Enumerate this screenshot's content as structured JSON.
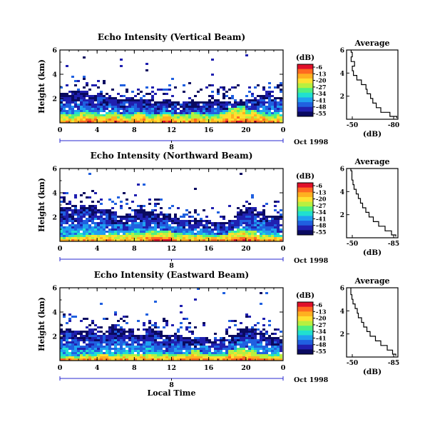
{
  "chart_data": [
    {
      "type": "heatmap",
      "title": "Echo Intensity (Vertical Beam)",
      "ylabel": "Height (km)",
      "x_ticks": [
        "0",
        "4",
        "8",
        "12",
        "16",
        "20",
        "0"
      ],
      "y_ticks": [
        "6",
        "4",
        "2"
      ],
      "xlim": [
        0,
        24
      ],
      "ylim": [
        0,
        6
      ],
      "date_ticks": [
        "8"
      ],
      "date_label": "Oct 1998",
      "colorbar": {
        "label": "(dB)",
        "ticks": [
          "-6",
          "-13",
          "-20",
          "-27",
          "-34",
          "-41",
          "-48",
          "-55"
        ],
        "colors": [
          "#e0102a",
          "#ff6a20",
          "#ffb020",
          "#ffe030",
          "#b8f040",
          "#50f080",
          "#20e0d0",
          "#20a0f0",
          "#2060e0",
          "#2020b0",
          "#0a0a60"
        ]
      },
      "top_heights": [
        2.5,
        2.6,
        2.7,
        2.3,
        2.4,
        2.2,
        2.0,
        2.1,
        2.0,
        1.9,
        1.8,
        1.9,
        1.8,
        1.8,
        1.7,
        1.8,
        1.9,
        1.8,
        1.8,
        1.7,
        2.0,
        2.3,
        2.6,
        2.2
      ],
      "strong_layer_top": [
        0.7,
        0.7,
        0.8,
        0.8,
        0.7,
        0.8,
        0.7,
        0.7,
        0.8,
        0.7,
        0.7,
        0.8,
        0.7,
        0.7,
        0.8,
        0.7,
        0.7,
        0.8,
        1.3,
        1.5,
        1.1,
        0.8,
        0.7,
        0.7
      ],
      "profile": {
        "title": "Average",
        "xlabel": "(dB)",
        "x_ticks": [
          "-50",
          "-80"
        ],
        "y_ticks": [
          "6",
          "4",
          "2"
        ],
        "xlim": [
          -40,
          -85
        ],
        "heights": [
          0.1,
          0.4,
          0.8,
          1.2,
          1.6,
          2.0,
          2.4,
          2.8,
          3.2,
          3.6,
          4.0,
          4.4,
          4.8,
          5.2,
          5.6,
          6.0
        ],
        "values": [
          -84,
          -78,
          -70,
          -66,
          -63,
          -61,
          -58,
          -57,
          -53,
          -49,
          -46,
          -45,
          -47,
          -44,
          -45,
          -44
        ]
      }
    },
    {
      "type": "heatmap",
      "title": "Echo Intensity (Northward Beam)",
      "ylabel": "Height (km)",
      "x_ticks": [
        "0",
        "4",
        "8",
        "12",
        "16",
        "20",
        "0"
      ],
      "y_ticks": [
        "6",
        "4",
        "2"
      ],
      "xlim": [
        0,
        24
      ],
      "ylim": [
        0,
        6
      ],
      "date_ticks": [
        "8"
      ],
      "date_label": "Oct 1998",
      "colorbar": {
        "label": "(dB)",
        "ticks": [
          "-6",
          "-13",
          "-20",
          "-27",
          "-34",
          "-41",
          "-48",
          "-55"
        ],
        "colors": [
          "#e0102a",
          "#ff6a20",
          "#ffb020",
          "#ffe030",
          "#b8f040",
          "#50f080",
          "#20e0d0",
          "#20a0f0",
          "#2060e0",
          "#2020b0",
          "#0a0a60"
        ]
      },
      "top_heights": [
        2.8,
        2.6,
        3.0,
        3.0,
        2.7,
        2.4,
        2.2,
        2.3,
        2.6,
        2.4,
        2.3,
        2.2,
        2.0,
        1.8,
        1.7,
        1.8,
        1.6,
        1.6,
        1.8,
        2.4,
        2.9,
        2.5,
        2.2,
        2.1
      ],
      "strong_layer_top": [
        0.4,
        0.5,
        0.5,
        0.6,
        0.6,
        0.7,
        0.6,
        0.7,
        0.7,
        0.8,
        0.9,
        0.8,
        0.7,
        0.6,
        0.6,
        0.5,
        0.5,
        0.6,
        0.9,
        1.1,
        0.8,
        0.6,
        0.5,
        0.5
      ],
      "profile": {
        "title": "Average",
        "xlabel": "(dB)",
        "x_ticks": [
          "-50",
          "-85"
        ],
        "y_ticks": [
          "6",
          "4",
          "2"
        ],
        "xlim": [
          -40,
          -88
        ],
        "heights": [
          0.1,
          0.4,
          0.8,
          1.2,
          1.6,
          2.0,
          2.4,
          2.8,
          3.2,
          3.6,
          4.0,
          4.4,
          4.8,
          5.2,
          5.6,
          6.0
        ],
        "values": [
          -86,
          -82,
          -76,
          -70,
          -65,
          -61,
          -58,
          -55,
          -53,
          -51,
          -49,
          -47,
          -46,
          -45,
          -45,
          -44
        ]
      }
    },
    {
      "type": "heatmap",
      "title": "Echo Intensity (Eastward Beam)",
      "ylabel": "Height (km)",
      "xlabel": "Local Time",
      "x_ticks": [
        "0",
        "4",
        "8",
        "12",
        "16",
        "20",
        "0"
      ],
      "y_ticks": [
        "6",
        "4",
        "2"
      ],
      "xlim": [
        0,
        24
      ],
      "ylim": [
        0,
        6
      ],
      "date_ticks": [
        "8"
      ],
      "date_label": "Oct 1998",
      "colorbar": {
        "label": "(dB)",
        "ticks": [
          "-6",
          "-13",
          "-20",
          "-27",
          "-34",
          "-41",
          "-48",
          "-55"
        ],
        "colors": [
          "#e0102a",
          "#ff6a20",
          "#ffb020",
          "#ffe030",
          "#b8f040",
          "#50f080",
          "#20e0d0",
          "#20a0f0",
          "#2060e0",
          "#2020b0",
          "#0a0a60"
        ]
      },
      "top_heights": [
        2.7,
        2.5,
        2.4,
        2.6,
        2.5,
        2.8,
        2.7,
        2.6,
        2.2,
        2.6,
        2.4,
        2.1,
        2.2,
        2.0,
        1.8,
        1.9,
        1.7,
        1.8,
        2.2,
        2.6,
        2.7,
        2.3,
        2.1,
        2.0
      ],
      "strong_layer_top": [
        0.4,
        0.4,
        0.5,
        0.5,
        0.6,
        0.5,
        0.6,
        0.6,
        0.6,
        0.6,
        0.7,
        0.6,
        0.6,
        0.6,
        0.8,
        0.6,
        0.5,
        0.5,
        0.9,
        1.0,
        0.8,
        0.6,
        0.5,
        0.5
      ],
      "profile": {
        "title": "Average",
        "xlabel": "(dB)",
        "x_ticks": [
          "-50",
          "-85"
        ],
        "y_ticks": [
          "6",
          "4",
          "2"
        ],
        "xlim": [
          -40,
          -88
        ],
        "heights": [
          0.1,
          0.4,
          0.8,
          1.2,
          1.6,
          2.0,
          2.4,
          2.8,
          3.2,
          3.6,
          4.0,
          4.4,
          4.8,
          5.2,
          5.6,
          6.0
        ],
        "values": [
          -86,
          -83,
          -78,
          -72,
          -67,
          -62,
          -59,
          -56,
          -54,
          -51,
          -50,
          -48,
          -46,
          -45,
          -44,
          -44
        ]
      }
    }
  ]
}
